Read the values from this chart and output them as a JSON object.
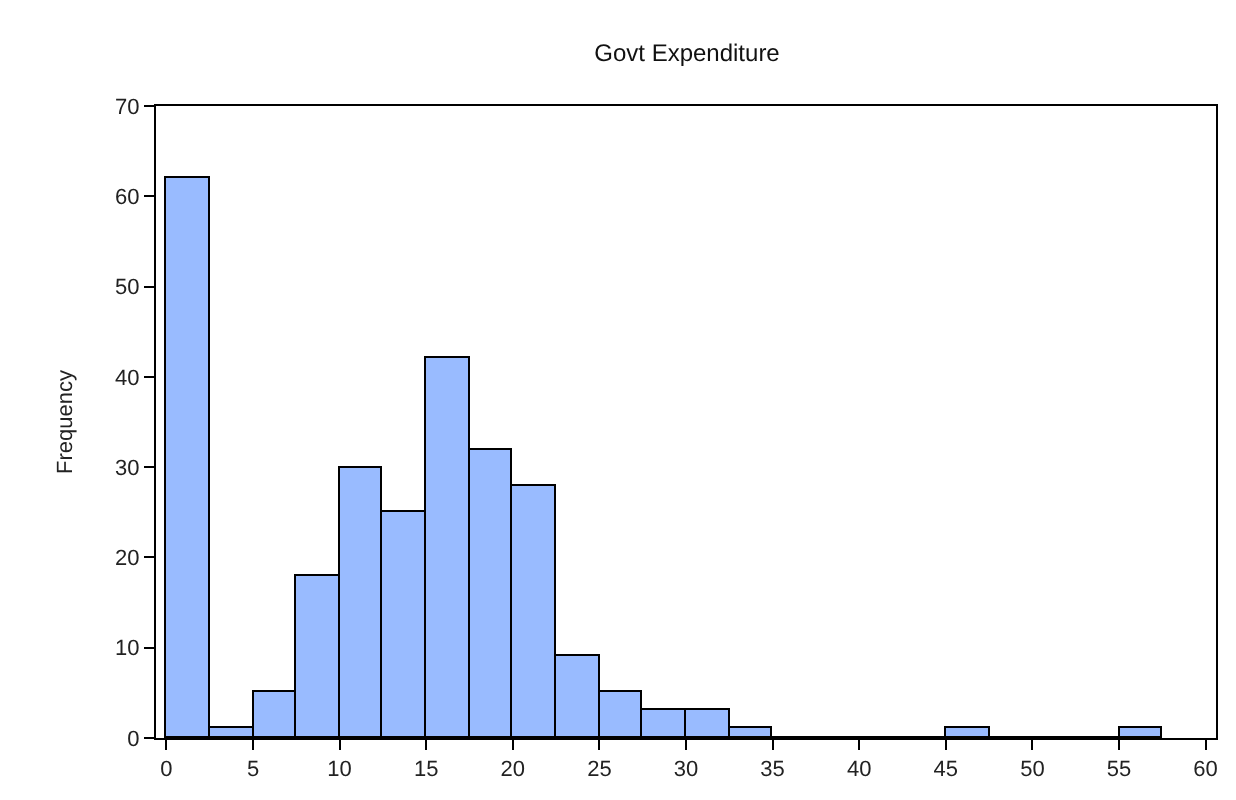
{
  "chart_data": {
    "type": "histogram",
    "title": "Govt Expenditure",
    "ylabel": "Frequency",
    "bins": [
      0,
      2.5,
      5,
      7.5,
      10,
      12.5,
      15,
      17.5,
      20,
      22.5,
      25,
      27.5,
      30,
      32.5,
      35,
      37.5,
      40,
      42.5,
      45,
      47.5,
      50,
      52.5,
      55,
      57.5
    ],
    "values": [
      62,
      1,
      5,
      18,
      30,
      25,
      42,
      32,
      28,
      9,
      5,
      3,
      3,
      1,
      0,
      0,
      0,
      0,
      1,
      0,
      0,
      0,
      1
    ],
    "color": "#99bbff",
    "xlim": [
      -0.6,
      60.6
    ],
    "xticks": [
      0,
      5,
      10,
      15,
      20,
      25,
      30,
      35,
      40,
      45,
      50,
      55,
      60
    ],
    "ylim": [
      0,
      70
    ],
    "yticks": [
      0,
      10,
      20,
      30,
      40,
      50,
      60,
      70
    ]
  }
}
